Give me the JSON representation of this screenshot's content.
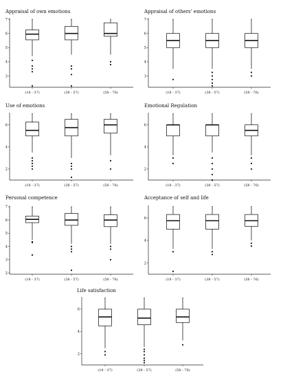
{
  "chart_data": [
    {
      "type": "boxplot",
      "title": "Appraisal of own emotions",
      "categories": [
        "(18 - 37)",
        "(38 - 57)",
        "(58 - 76)"
      ],
      "yticks": [
        3,
        4,
        5,
        6,
        7
      ],
      "ylim": [
        2.2,
        7.1
      ],
      "boxes": [
        {
          "whisker_low": 4.4,
          "q1": 5.55,
          "median": 5.95,
          "q3": 6.25,
          "whisker_high": 7.0,
          "outliers": [
            4.1,
            3.7,
            3.5,
            3.3,
            2.3
          ]
        },
        {
          "whisker_low": 4.5,
          "q1": 5.55,
          "median": 6.0,
          "q3": 6.5,
          "whisker_high": 7.0,
          "outliers": [
            3.7,
            3.5,
            3.1,
            2.3
          ]
        },
        {
          "whisker_low": 4.5,
          "q1": 5.8,
          "median": 6.0,
          "q3": 6.75,
          "whisker_high": 7.0,
          "outliers": [
            4.0,
            3.8
          ]
        }
      ]
    },
    {
      "type": "boxplot",
      "title": "Appraisal of others' emotions",
      "categories": [
        "(18 - 37)",
        "(38 - 57)",
        "(58 - 76)"
      ],
      "yticks": [
        3,
        4,
        5,
        6,
        7
      ],
      "ylim": [
        2.2,
        7.1
      ],
      "boxes": [
        {
          "whisker_low": 3.5,
          "q1": 5.0,
          "median": 5.5,
          "q3": 6.0,
          "whisker_high": 7.0,
          "outliers": [
            2.75
          ]
        },
        {
          "whisker_low": 3.5,
          "q1": 5.0,
          "median": 5.5,
          "q3": 6.0,
          "whisker_high": 7.0,
          "outliers": [
            3.25,
            3.0,
            2.75,
            2.5,
            2.3
          ]
        },
        {
          "whisker_low": 3.5,
          "q1": 5.0,
          "median": 5.5,
          "q3": 6.0,
          "whisker_high": 7.0,
          "outliers": [
            3.25,
            3.0
          ]
        }
      ]
    },
    {
      "type": "boxplot",
      "title": "Use of emotions",
      "categories": [
        "(18 - 37)",
        "(38 - 57)",
        "(58 - 76)"
      ],
      "yticks": [
        2,
        4,
        6
      ],
      "ylim": [
        1.0,
        7.1
      ],
      "boxes": [
        {
          "whisker_low": 3.5,
          "q1": 5.0,
          "median": 5.5,
          "q3": 6.25,
          "whisker_high": 7.0,
          "outliers": [
            3.0,
            2.75,
            2.5,
            2.25,
            2.0
          ]
        },
        {
          "whisker_low": 3.0,
          "q1": 5.0,
          "median": 5.75,
          "q3": 6.5,
          "whisker_high": 7.0,
          "outliers": [
            2.5,
            2.25,
            2.0,
            1.25
          ]
        },
        {
          "whisker_low": 3.25,
          "q1": 5.25,
          "median": 6.0,
          "q3": 6.5,
          "whisker_high": 7.0,
          "outliers": [
            2.75,
            2.0
          ]
        }
      ]
    },
    {
      "type": "boxplot",
      "title": "Emotional Regulation",
      "categories": [
        "(18 - 37)",
        "(38 - 57)",
        "(58 - 76)"
      ],
      "yticks": [
        2,
        4,
        6
      ],
      "ylim": [
        1.0,
        7.1
      ],
      "boxes": [
        {
          "whisker_low": 3.25,
          "q1": 5.0,
          "median": 6.0,
          "q3": 6.0,
          "whisker_high": 7.0,
          "outliers": [
            3.0,
            2.5
          ]
        },
        {
          "whisker_low": 3.5,
          "q1": 5.0,
          "median": 6.0,
          "q3": 6.0,
          "whisker_high": 7.0,
          "outliers": [
            3.0,
            2.5,
            2.0,
            1.5,
            1.0
          ]
        },
        {
          "whisker_low": 3.25,
          "q1": 5.0,
          "median": 5.5,
          "q3": 6.0,
          "whisker_high": 7.0,
          "outliers": [
            3.0,
            2.5,
            2.0
          ]
        }
      ]
    },
    {
      "type": "boxplot",
      "title": "Personal competence",
      "categories": [
        "(18 - 37)",
        "(38 - 57)",
        "(58 - 76)"
      ],
      "yticks": [
        2,
        3,
        4,
        5,
        6,
        7
      ],
      "ylim": [
        1.9,
        7.1
      ],
      "boxes": [
        {
          "whisker_low": 4.5,
          "q1": 5.8,
          "median": 6.05,
          "q3": 6.3,
          "whisker_high": 7.0,
          "outliers": [
            4.35,
            4.3,
            3.35
          ]
        },
        {
          "whisker_low": 4.2,
          "q1": 5.6,
          "median": 6.0,
          "q3": 6.5,
          "whisker_high": 7.0,
          "outliers": [
            4.0,
            3.8,
            3.6,
            2.2
          ]
        },
        {
          "whisker_low": 4.2,
          "q1": 5.5,
          "median": 6.0,
          "q3": 6.4,
          "whisker_high": 7.0,
          "outliers": [
            4.0,
            3.8,
            3.0
          ]
        }
      ]
    },
    {
      "type": "boxplot",
      "title": "Acceptance of self and life",
      "categories": [
        "(18 - 37)",
        "(38 - 57)",
        "(58 - 76)"
      ],
      "yticks": [
        2,
        4,
        6
      ],
      "ylim": [
        1.0,
        7.1
      ],
      "boxes": [
        {
          "whisker_low": 3.25,
          "q1": 5.0,
          "median": 5.75,
          "q3": 6.3,
          "whisker_high": 7.0,
          "outliers": [
            3.0,
            1.25
          ]
        },
        {
          "whisker_low": 3.25,
          "q1": 5.0,
          "median": 5.75,
          "q3": 6.3,
          "whisker_high": 7.0,
          "outliers": [
            3.0,
            2.75
          ]
        },
        {
          "whisker_low": 4.0,
          "q1": 5.25,
          "median": 5.75,
          "q3": 6.3,
          "whisker_high": 7.0,
          "outliers": [
            3.75,
            3.5
          ]
        }
      ]
    },
    {
      "type": "boxplot",
      "title": "Life satisfaction",
      "categories": [
        "(18 - 37)",
        "(38 - 57)",
        "(58 - 76)"
      ],
      "yticks": [
        2,
        4,
        6
      ],
      "ylim": [
        1.0,
        7.1
      ],
      "boxes": [
        {
          "whisker_low": 2.5,
          "q1": 4.5,
          "median": 5.3,
          "q3": 6.0,
          "whisker_high": 7.0,
          "outliers": [
            2.2,
            1.9
          ]
        },
        {
          "whisker_low": 2.6,
          "q1": 4.6,
          "median": 5.2,
          "q3": 6.0,
          "whisker_high": 7.0,
          "outliers": [
            2.4,
            2.2,
            1.9,
            1.6,
            1.4,
            1.2
          ]
        },
        {
          "whisker_low": 3.2,
          "q1": 4.8,
          "median": 5.3,
          "q3": 6.0,
          "whisker_high": 7.0,
          "outliers": [
            2.8
          ]
        }
      ]
    }
  ]
}
